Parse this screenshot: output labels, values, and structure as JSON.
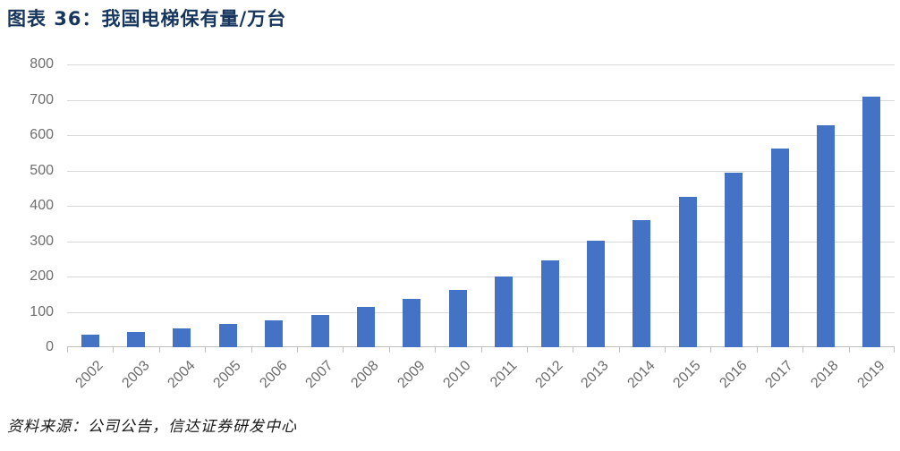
{
  "title": "图表 36：我国电梯保有量/万台",
  "source": "资料来源：公司公告，信达证券研发中心",
  "colors": {
    "bar": "#4472C4",
    "grid": "#D9D9D9",
    "axis": "#BFBFBF",
    "axis_text": "#6E6E6E",
    "title_text": "#17365D",
    "source_text": "#1A1A1A"
  },
  "chart_data": {
    "type": "bar",
    "title": "图表 36：我国电梯保有量/万台",
    "categories": [
      "2002",
      "2003",
      "2004",
      "2005",
      "2006",
      "2007",
      "2008",
      "2009",
      "2010",
      "2011",
      "2012",
      "2013",
      "2014",
      "2015",
      "2016",
      "2017",
      "2018",
      "2019"
    ],
    "values": [
      35,
      43,
      53,
      65,
      77,
      91,
      115,
      137,
      163,
      201,
      245,
      301,
      360,
      426,
      494,
      563,
      628,
      710
    ],
    "xlabel": "",
    "ylabel": "",
    "ylim": [
      0,
      800
    ],
    "y_ticks": [
      0,
      100,
      200,
      300,
      400,
      500,
      600,
      700,
      800
    ],
    "grid": "horizontal",
    "legend": "none",
    "x_label_rotation_deg": 45,
    "bar_color": "#4472C4"
  }
}
